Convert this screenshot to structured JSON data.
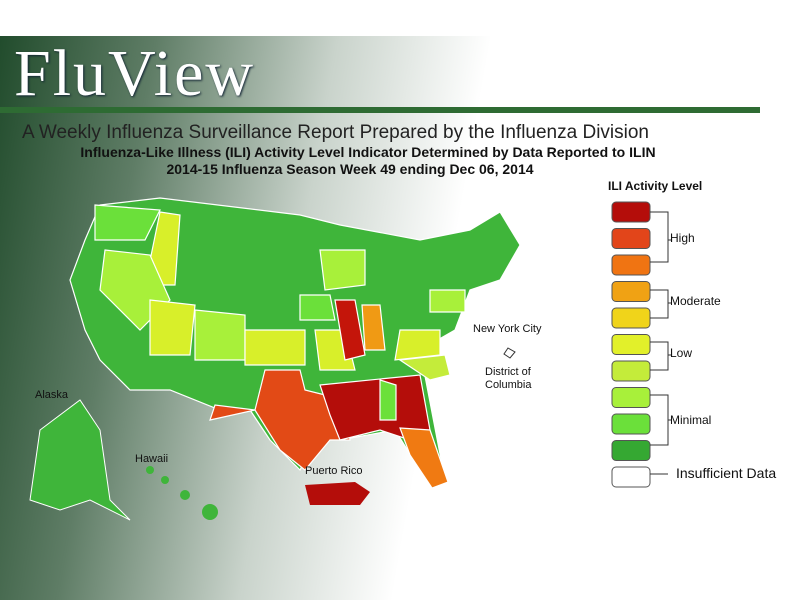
{
  "header": {
    "title": "FluView",
    "subtitle": "A Weekly Influenza Surveillance Report Prepared by the Influenza Division"
  },
  "map": {
    "title_lines": [
      "Influenza-Like Illness (ILI) Activity Level Indicator Determined by Data Reported to ILIN",
      "2014-15  Influenza Season Week  49 ending Dec 06, 2014"
    ],
    "labels": [
      "Alaska",
      "Hawaii",
      "Puerto Rico",
      "New York City",
      "District of Columbia"
    ]
  },
  "legend": {
    "title": "ILI Activity Level",
    "groups": [
      "High",
      "Moderate",
      "Low",
      "Minimal"
    ],
    "insufficient": "Insufficient Data"
  }
}
